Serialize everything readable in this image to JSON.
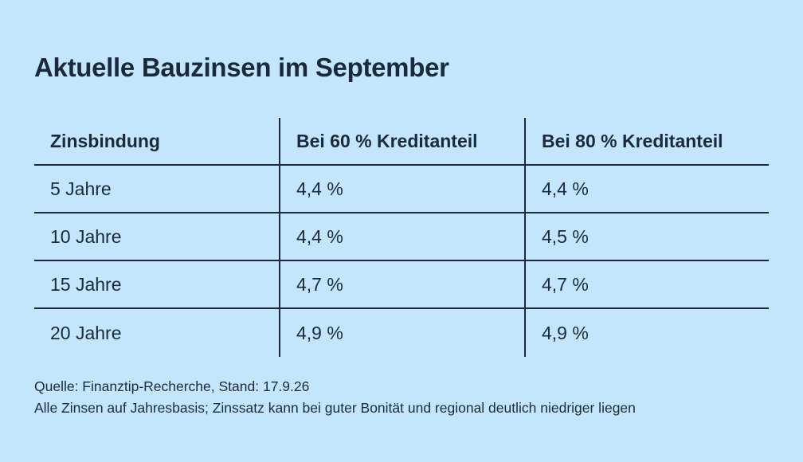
{
  "title": "Aktuelle Bauzinsen im September",
  "table": {
    "headers": [
      "Zinsbindung",
      "Bei 60 % Kreditanteil",
      "Bei 80 % Kreditanteil"
    ],
    "rows": [
      [
        "5 Jahre",
        "4,4 %",
        "4,4 %"
      ],
      [
        "10 Jahre",
        "4,4 %",
        "4,5 %"
      ],
      [
        "15 Jahre",
        "4,7 %",
        "4,7 %"
      ],
      [
        "20 Jahre",
        "4,9 %",
        "4,9 %"
      ]
    ]
  },
  "footer": {
    "source": "Quelle: Finanztip-Recherche, Stand: 17.9.26",
    "note": "Alle Zinsen auf Jahresbasis; Zinssatz kann bei guter Bonität und regional deutlich niedriger liegen"
  },
  "colors": {
    "background": "#c3e6fd",
    "text": "#1b2a3a"
  },
  "chart_data": {
    "type": "table",
    "title": "Aktuelle Bauzinsen im September",
    "columns": [
      "Zinsbindung",
      "Bei 60 % Kreditanteil",
      "Bei 80 % Kreditanteil"
    ],
    "categories": [
      "5 Jahre",
      "10 Jahre",
      "15 Jahre",
      "20 Jahre"
    ],
    "series": [
      {
        "name": "Bei 60 % Kreditanteil",
        "values": [
          4.4,
          4.4,
          4.7,
          4.9
        ]
      },
      {
        "name": "Bei 80 % Kreditanteil",
        "values": [
          4.4,
          4.5,
          4.7,
          4.9
        ]
      }
    ]
  }
}
